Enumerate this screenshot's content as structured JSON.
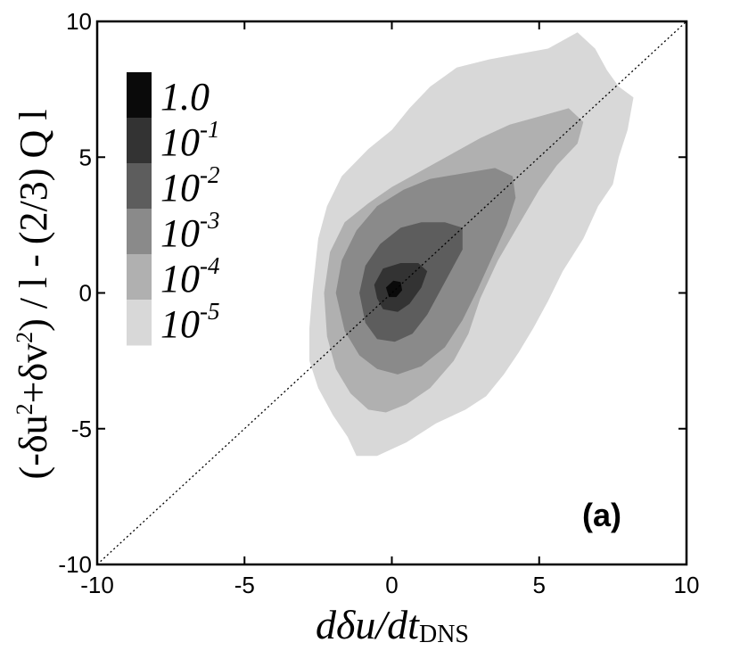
{
  "chart_data": {
    "type": "heatmap",
    "subtype": "filled-contour joint PDF",
    "panel_label": "(a)",
    "xlabel": {
      "main": "dδu/dt",
      "sub": "DNS"
    },
    "ylabel": {
      "pre": "(-δu",
      "sup1": "2",
      "mid": "+δv",
      "sup2": "2",
      "post": ") / l - (2/3) Q l"
    },
    "xlim": [
      -10,
      10
    ],
    "ylim": [
      -10,
      10
    ],
    "xticks": [
      -10,
      -5,
      0,
      5,
      10
    ],
    "yticks": [
      -10,
      -5,
      0,
      5,
      10
    ],
    "diagonal_reference": {
      "style": "dotted",
      "from": [
        -10,
        -10
      ],
      "to": [
        10,
        10
      ]
    },
    "legend": {
      "placement": "top-left",
      "levels": [
        {
          "base": "1.0",
          "exp": "",
          "color": "#0a0a0a"
        },
        {
          "base": "10",
          "exp": "-1",
          "color": "#333333"
        },
        {
          "base": "10",
          "exp": "-2",
          "color": "#5d5d5d"
        },
        {
          "base": "10",
          "exp": "-3",
          "color": "#8a8a8a"
        },
        {
          "base": "10",
          "exp": "-4",
          "color": "#b0b0b0"
        },
        {
          "base": "10",
          "exp": "-5",
          "color": "#d8d8d8"
        }
      ]
    },
    "contours": [
      {
        "level": "10^-5",
        "color": "#d8d8d8",
        "points": [
          [
            -2.7,
            0
          ],
          [
            -2.5,
            2
          ],
          [
            -2.2,
            3.2
          ],
          [
            -1.7,
            4.3
          ],
          [
            -0.8,
            5.3
          ],
          [
            0,
            6.0
          ],
          [
            0.6,
            6.8
          ],
          [
            1.3,
            7.6
          ],
          [
            2.2,
            8.3
          ],
          [
            3.3,
            8.6
          ],
          [
            4.3,
            8.8
          ],
          [
            5.3,
            9.0
          ],
          [
            6.3,
            9.6
          ],
          [
            6.9,
            9.0
          ],
          [
            7.3,
            8.2
          ],
          [
            7.7,
            7.6
          ],
          [
            8.2,
            7.2
          ],
          [
            8.0,
            6.0
          ],
          [
            7.7,
            5.0
          ],
          [
            7.5,
            4.0
          ],
          [
            7.0,
            3.2
          ],
          [
            6.5,
            2.0
          ],
          [
            5.8,
            0.8
          ],
          [
            5.3,
            -0.3
          ],
          [
            4.8,
            -1.3
          ],
          [
            4.3,
            -2.2
          ],
          [
            3.8,
            -3.0
          ],
          [
            3.2,
            -3.8
          ],
          [
            2.5,
            -4.3
          ],
          [
            1.5,
            -4.8
          ],
          [
            0.5,
            -5.5
          ],
          [
            -0.5,
            -6.0
          ],
          [
            -1.2,
            -6.0
          ],
          [
            -1.5,
            -5.3
          ],
          [
            -2.0,
            -4.5
          ],
          [
            -2.5,
            -3.5
          ],
          [
            -2.8,
            -2.5
          ],
          [
            -2.8,
            -1.3
          ]
        ]
      },
      {
        "level": "10^-4",
        "color": "#b0b0b0",
        "points": [
          [
            -2.3,
            0
          ],
          [
            -2.1,
            1.5
          ],
          [
            -1.6,
            2.6
          ],
          [
            -0.8,
            3.3
          ],
          [
            0,
            3.9
          ],
          [
            1,
            4.5
          ],
          [
            2,
            5.1
          ],
          [
            3,
            5.7
          ],
          [
            4,
            6.2
          ],
          [
            5,
            6.5
          ],
          [
            6,
            6.8
          ],
          [
            6.5,
            6.3
          ],
          [
            6.3,
            5.5
          ],
          [
            5.6,
            4.7
          ],
          [
            5.0,
            3.8
          ],
          [
            4.3,
            2.5
          ],
          [
            3.6,
            1.2
          ],
          [
            3.0,
            -0.2
          ],
          [
            2.6,
            -1.5
          ],
          [
            2.1,
            -2.5
          ],
          [
            1.3,
            -3.5
          ],
          [
            0.5,
            -4.1
          ],
          [
            -0.2,
            -4.4
          ],
          [
            -0.8,
            -4.3
          ],
          [
            -1.4,
            -3.7
          ],
          [
            -1.9,
            -2.8
          ],
          [
            -2.2,
            -1.6
          ]
        ]
      },
      {
        "level": "10^-3",
        "color": "#8a8a8a",
        "points": [
          [
            -1.9,
            0
          ],
          [
            -1.7,
            1.2
          ],
          [
            -1.2,
            2.3
          ],
          [
            -0.5,
            3.2
          ],
          [
            0.4,
            3.8
          ],
          [
            1.3,
            4.2
          ],
          [
            2.4,
            4.4
          ],
          [
            3.5,
            4.6
          ],
          [
            4.1,
            4.3
          ],
          [
            4.2,
            3.5
          ],
          [
            3.9,
            2.5
          ],
          [
            3.4,
            1.3
          ],
          [
            2.9,
            0.1
          ],
          [
            2.4,
            -1.0
          ],
          [
            1.8,
            -2.0
          ],
          [
            1.0,
            -2.7
          ],
          [
            0.2,
            -3.0
          ],
          [
            -0.5,
            -2.8
          ],
          [
            -1.1,
            -2.3
          ],
          [
            -1.6,
            -1.4
          ]
        ]
      },
      {
        "level": "10^-2",
        "color": "#5d5d5d",
        "points": [
          [
            -1.1,
            0
          ],
          [
            -0.9,
            1.0
          ],
          [
            -0.4,
            1.8
          ],
          [
            0.3,
            2.4
          ],
          [
            1.0,
            2.6
          ],
          [
            1.8,
            2.6
          ],
          [
            2.4,
            2.4
          ],
          [
            2.4,
            1.6
          ],
          [
            2.0,
            0.8
          ],
          [
            1.6,
            0.0
          ],
          [
            1.2,
            -0.8
          ],
          [
            0.7,
            -1.5
          ],
          [
            0.1,
            -1.8
          ],
          [
            -0.5,
            -1.7
          ],
          [
            -0.9,
            -1.1
          ]
        ]
      },
      {
        "level": "10^-1",
        "color": "#333333",
        "points": [
          [
            -0.6,
            0.3
          ],
          [
            -0.3,
            0.9
          ],
          [
            0.3,
            1.1
          ],
          [
            0.9,
            1.1
          ],
          [
            1.2,
            0.8
          ],
          [
            1.0,
            0.2
          ],
          [
            0.6,
            -0.4
          ],
          [
            0.2,
            -0.7
          ],
          [
            -0.3,
            -0.6
          ],
          [
            -0.5,
            -0.2
          ]
        ]
      },
      {
        "level": "1.0",
        "color": "#0a0a0a",
        "points": [
          [
            -0.2,
            0.2
          ],
          [
            0.05,
            0.45
          ],
          [
            0.3,
            0.4
          ],
          [
            0.35,
            0.1
          ],
          [
            0.15,
            -0.15
          ],
          [
            -0.1,
            -0.15
          ]
        ]
      }
    ]
  }
}
